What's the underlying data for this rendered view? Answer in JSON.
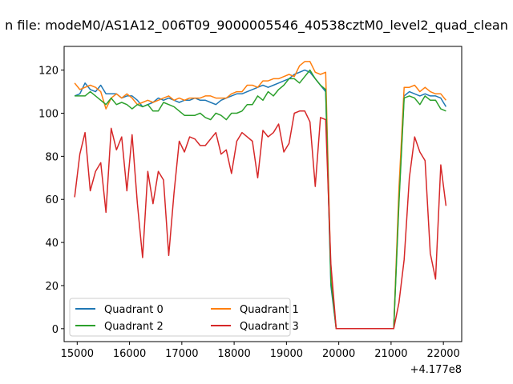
{
  "chart_data": {
    "type": "line",
    "title": "n file: modeM0/AS1A12_006T09_9000005546_40538cztM0_level2_quad_clean",
    "x_offset_label": "+4.177e8",
    "x_ticks": [
      15000,
      16000,
      17000,
      18000,
      19000,
      20000,
      21000,
      22000
    ],
    "y_ticks": [
      0,
      20,
      40,
      60,
      80,
      100,
      120
    ],
    "xlim": [
      14750,
      22350
    ],
    "ylim": [
      -6,
      131
    ],
    "grid": false,
    "legend": {
      "placement": "lower-left",
      "columns": 2
    },
    "series": [
      {
        "name": "Quadrant 0",
        "color": "#1f77b4",
        "x": [
          14950,
          15050,
          15150,
          15250,
          15350,
          15450,
          15550,
          15650,
          15750,
          15850,
          15950,
          16050,
          16150,
          16250,
          16350,
          16450,
          16550,
          16650,
          16750,
          16850,
          16950,
          17050,
          17150,
          17250,
          17350,
          17450,
          17550,
          17650,
          17750,
          17850,
          17950,
          18050,
          18150,
          18250,
          18350,
          18450,
          18550,
          18650,
          18750,
          18850,
          18950,
          19050,
          19150,
          19250,
          19350,
          19450,
          19550,
          19650,
          19750,
          19850,
          19950,
          21050,
          21150,
          21250,
          21350,
          21450,
          21550,
          21650,
          21750,
          21850,
          21950,
          22050
        ],
        "y": [
          108,
          109,
          114,
          111,
          110,
          113,
          109,
          109,
          109,
          107,
          108,
          108,
          106,
          103,
          104,
          105,
          107,
          106,
          107,
          106,
          105,
          106,
          106,
          107,
          106,
          106,
          105,
          104,
          106,
          107,
          108,
          109,
          109,
          110,
          111,
          112,
          113,
          112,
          113,
          114,
          115,
          116,
          118,
          119,
          120,
          119,
          116,
          113,
          110,
          20,
          0,
          0,
          60,
          108,
          110,
          109,
          108,
          109,
          108,
          108,
          107,
          103
        ]
      },
      {
        "name": "Quadrant 1",
        "color": "#ff7f0e",
        "x": [
          14950,
          15050,
          15150,
          15250,
          15350,
          15450,
          15550,
          15650,
          15750,
          15850,
          15950,
          16050,
          16150,
          16250,
          16350,
          16450,
          16550,
          16650,
          16750,
          16850,
          16950,
          17050,
          17150,
          17250,
          17350,
          17450,
          17550,
          17650,
          17750,
          17850,
          17950,
          18050,
          18150,
          18250,
          18350,
          18450,
          18550,
          18650,
          18750,
          18850,
          18950,
          19050,
          19150,
          19250,
          19350,
          19450,
          19550,
          19650,
          19750,
          19850,
          19950,
          21050,
          21150,
          21250,
          21350,
          21450,
          21550,
          21650,
          21750,
          21850,
          21950,
          22050
        ],
        "y": [
          114,
          111,
          112,
          113,
          112,
          110,
          102,
          107,
          109,
          107,
          109,
          107,
          104,
          105,
          106,
          105,
          106,
          107,
          108,
          106,
          107,
          106,
          107,
          107,
          107,
          108,
          108,
          107,
          107,
          107,
          109,
          110,
          110,
          113,
          113,
          112,
          115,
          115,
          116,
          116,
          117,
          118,
          117,
          122,
          124,
          124,
          119,
          118,
          119,
          25,
          0,
          0,
          65,
          112,
          112,
          113,
          110,
          112,
          110,
          109,
          109,
          106
        ]
      },
      {
        "name": "Quadrant 2",
        "color": "#2ca02c",
        "x": [
          14950,
          15050,
          15150,
          15250,
          15350,
          15450,
          15550,
          15650,
          15750,
          15850,
          15950,
          16050,
          16150,
          16250,
          16350,
          16450,
          16550,
          16650,
          16750,
          16850,
          16950,
          17050,
          17150,
          17250,
          17350,
          17450,
          17550,
          17650,
          17750,
          17850,
          17950,
          18050,
          18150,
          18250,
          18350,
          18450,
          18550,
          18650,
          18750,
          18850,
          18950,
          19050,
          19150,
          19250,
          19350,
          19450,
          19550,
          19650,
          19750,
          19850,
          19950,
          21050,
          21150,
          21250,
          21350,
          21450,
          21550,
          21650,
          21750,
          21850,
          21950,
          22050
        ],
        "y": [
          108,
          108,
          108,
          110,
          108,
          106,
          104,
          107,
          104,
          105,
          104,
          102,
          104,
          103,
          104,
          101,
          101,
          105,
          104,
          103,
          101,
          99,
          99,
          99,
          100,
          98,
          97,
          100,
          99,
          97,
          100,
          100,
          101,
          104,
          104,
          108,
          106,
          110,
          108,
          111,
          113,
          116,
          116,
          114,
          117,
          120,
          116,
          113,
          111,
          22,
          0,
          0,
          58,
          107,
          108,
          107,
          104,
          108,
          106,
          106,
          102,
          101
        ]
      },
      {
        "name": "Quadrant 3",
        "color": "#d62728",
        "x": [
          14950,
          15050,
          15150,
          15250,
          15350,
          15450,
          15550,
          15650,
          15750,
          15850,
          15950,
          16050,
          16150,
          16250,
          16350,
          16450,
          16550,
          16650,
          16750,
          16850,
          16950,
          17050,
          17150,
          17250,
          17350,
          17450,
          17550,
          17650,
          17750,
          17850,
          17950,
          18050,
          18150,
          18250,
          18350,
          18450,
          18550,
          18650,
          18750,
          18850,
          18950,
          19050,
          19150,
          19250,
          19350,
          19450,
          19550,
          19650,
          19750,
          19850,
          19950,
          21050,
          21150,
          21250,
          21350,
          21450,
          21550,
          21650,
          21750,
          21850,
          21950,
          22050
        ],
        "y": [
          61,
          81,
          91,
          64,
          73,
          77,
          54,
          93,
          83,
          89,
          64,
          90,
          58,
          33,
          73,
          58,
          73,
          69,
          34,
          63,
          87,
          82,
          89,
          88,
          85,
          85,
          88,
          91,
          81,
          83,
          72,
          87,
          91,
          89,
          87,
          70,
          92,
          89,
          91,
          95,
          82,
          86,
          100,
          101,
          101,
          96,
          66,
          98,
          97,
          30,
          0,
          0,
          12,
          32,
          70,
          89,
          82,
          78,
          35,
          23,
          76,
          57
        ]
      }
    ]
  }
}
